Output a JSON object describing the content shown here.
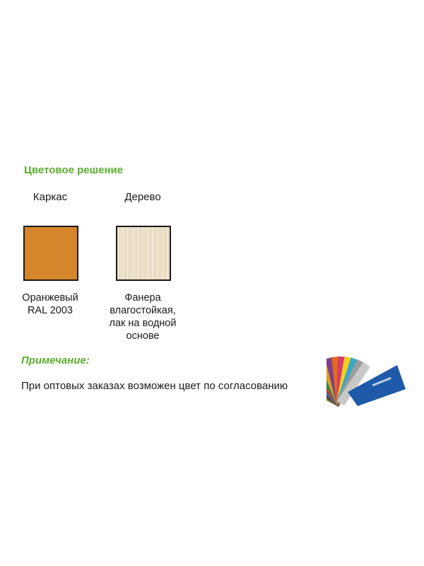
{
  "section": {
    "title": "Цветовое решение"
  },
  "columns": [
    {
      "label": "Каркас",
      "swatch_color": "#d6862a",
      "caption_lines": [
        "Оранжевый",
        "RAL 2003"
      ]
    },
    {
      "label": "Дерево",
      "swatch_color": "#efe3cc",
      "caption_lines": [
        "Фанера",
        "влагостойкая,",
        "лак на водной",
        "основе"
      ]
    }
  ],
  "note": {
    "title": "Примечание:",
    "text": "При оптовых заказах возможен цвет по согласованию"
  },
  "colors": {
    "accent_green": "#5aae2e",
    "frame_orange": "#d6862a",
    "palette_blue": "#1f5aa8"
  },
  "icons": {
    "palette": "ral-color-fan-icon"
  }
}
